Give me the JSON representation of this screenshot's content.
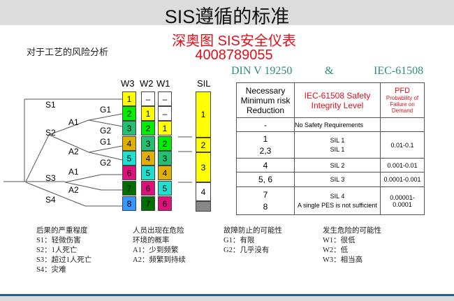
{
  "header": {
    "title": "SIS遵循的标准"
  },
  "subtitle": "对于工艺的风险分析",
  "watermark": {
    "line1": "深奥图 SIS安全仪表",
    "line2": "4008789055"
  },
  "standards": {
    "left": "DIN V 19250",
    "amp": "&",
    "right": "IEC-61508"
  },
  "graph": {
    "columns": [
      {
        "name": "W3",
        "cells": [
          {
            "v": "1",
            "c": "#ffff00"
          },
          {
            "v": "2",
            "c": "#00ee00"
          },
          {
            "v": "3",
            "c": "#22c070"
          },
          {
            "v": "4",
            "c": "#e0b000"
          },
          {
            "v": "5",
            "c": "#20e0d0"
          },
          {
            "v": "6",
            "c": "#e0107a"
          },
          {
            "v": "7",
            "c": "#007000"
          },
          {
            "v": "8",
            "c": "#3399ff"
          }
        ]
      },
      {
        "name": "W2",
        "cells": [
          {
            "v": "–",
            "c": "#ffffff"
          },
          {
            "v": "1",
            "c": "#ffff00"
          },
          {
            "v": "2",
            "c": "#00ee00"
          },
          {
            "v": "3",
            "c": "#22c070"
          },
          {
            "v": "4",
            "c": "#e0b000"
          },
          {
            "v": "5",
            "c": "#20e0d0"
          },
          {
            "v": "6",
            "c": "#e0107a"
          },
          {
            "v": "7",
            "c": "#007000"
          }
        ]
      },
      {
        "name": "W1",
        "cells": [
          {
            "v": "–",
            "c": "#ffffff"
          },
          {
            "v": "–",
            "c": "#ffffff"
          },
          {
            "v": "1",
            "c": "#ffff00"
          },
          {
            "v": "2",
            "c": "#00ee00"
          },
          {
            "v": "3",
            "c": "#22c070"
          },
          {
            "v": "4",
            "c": "#e0b000"
          },
          {
            "v": "5",
            "c": "#20e0d0"
          },
          {
            "v": "6",
            "c": "#e0107a"
          }
        ]
      }
    ],
    "sil": {
      "name": "SIL",
      "cells": [
        {
          "v": "1",
          "c": "#ffff00"
        },
        {
          "v": "2",
          "c": "#ffff00"
        },
        {
          "v": "3",
          "c": "#ffff00"
        },
        {
          "v": "4",
          "c": "#ffffff"
        },
        {
          "v": "",
          "c": "#888888"
        }
      ]
    },
    "labels": [
      "S1",
      "G1",
      "A1",
      "S2",
      "G2",
      "G1",
      "A2",
      "G2",
      "A1",
      "S3",
      "A2",
      "S4"
    ]
  },
  "table": {
    "headers": [
      "Necessary Minimum risk Reduction",
      "IEC-61508 Safety Integrity Level",
      "PFD"
    ],
    "pfd_sub": "Probability of Failure on Demand",
    "rows": [
      {
        "r": [
          "-"
        ],
        "sil": [
          "No Safety Requirements"
        ],
        "pfd": ""
      },
      {
        "r": [
          "1",
          "2,3"
        ],
        "sil": [
          "SIL 1",
          "SIL 1"
        ],
        "pfd": "0.01-0.1"
      },
      {
        "r": [
          "4"
        ],
        "sil": [
          "SIL 2"
        ],
        "pfd": "0.001-0.01"
      },
      {
        "r": [
          "5, 6"
        ],
        "sil": [
          "SIL 3"
        ],
        "pfd": "0.0001-0.001"
      },
      {
        "r": [
          "7",
          "8"
        ],
        "sil": [
          "SIL 4",
          "A single PES is not sufficient"
        ],
        "pfd": "0.00001-0.0001"
      }
    ]
  },
  "legend": [
    [
      "后果的严重程度",
      "S1：轻微伤害",
      "S2：1人死亡",
      "S3：超过1人死亡",
      "S4：灾难"
    ],
    [
      "人员出现在危险",
      "环境的概率",
      "A1：少到频繁",
      "A2：频繁到持续"
    ],
    [
      "故障防止的可能性",
      "G1：有限",
      "G2：几乎没有"
    ],
    [
      "发生危险的可能性",
      "W1：很低",
      "W2：低",
      "W3：相当高"
    ]
  ]
}
